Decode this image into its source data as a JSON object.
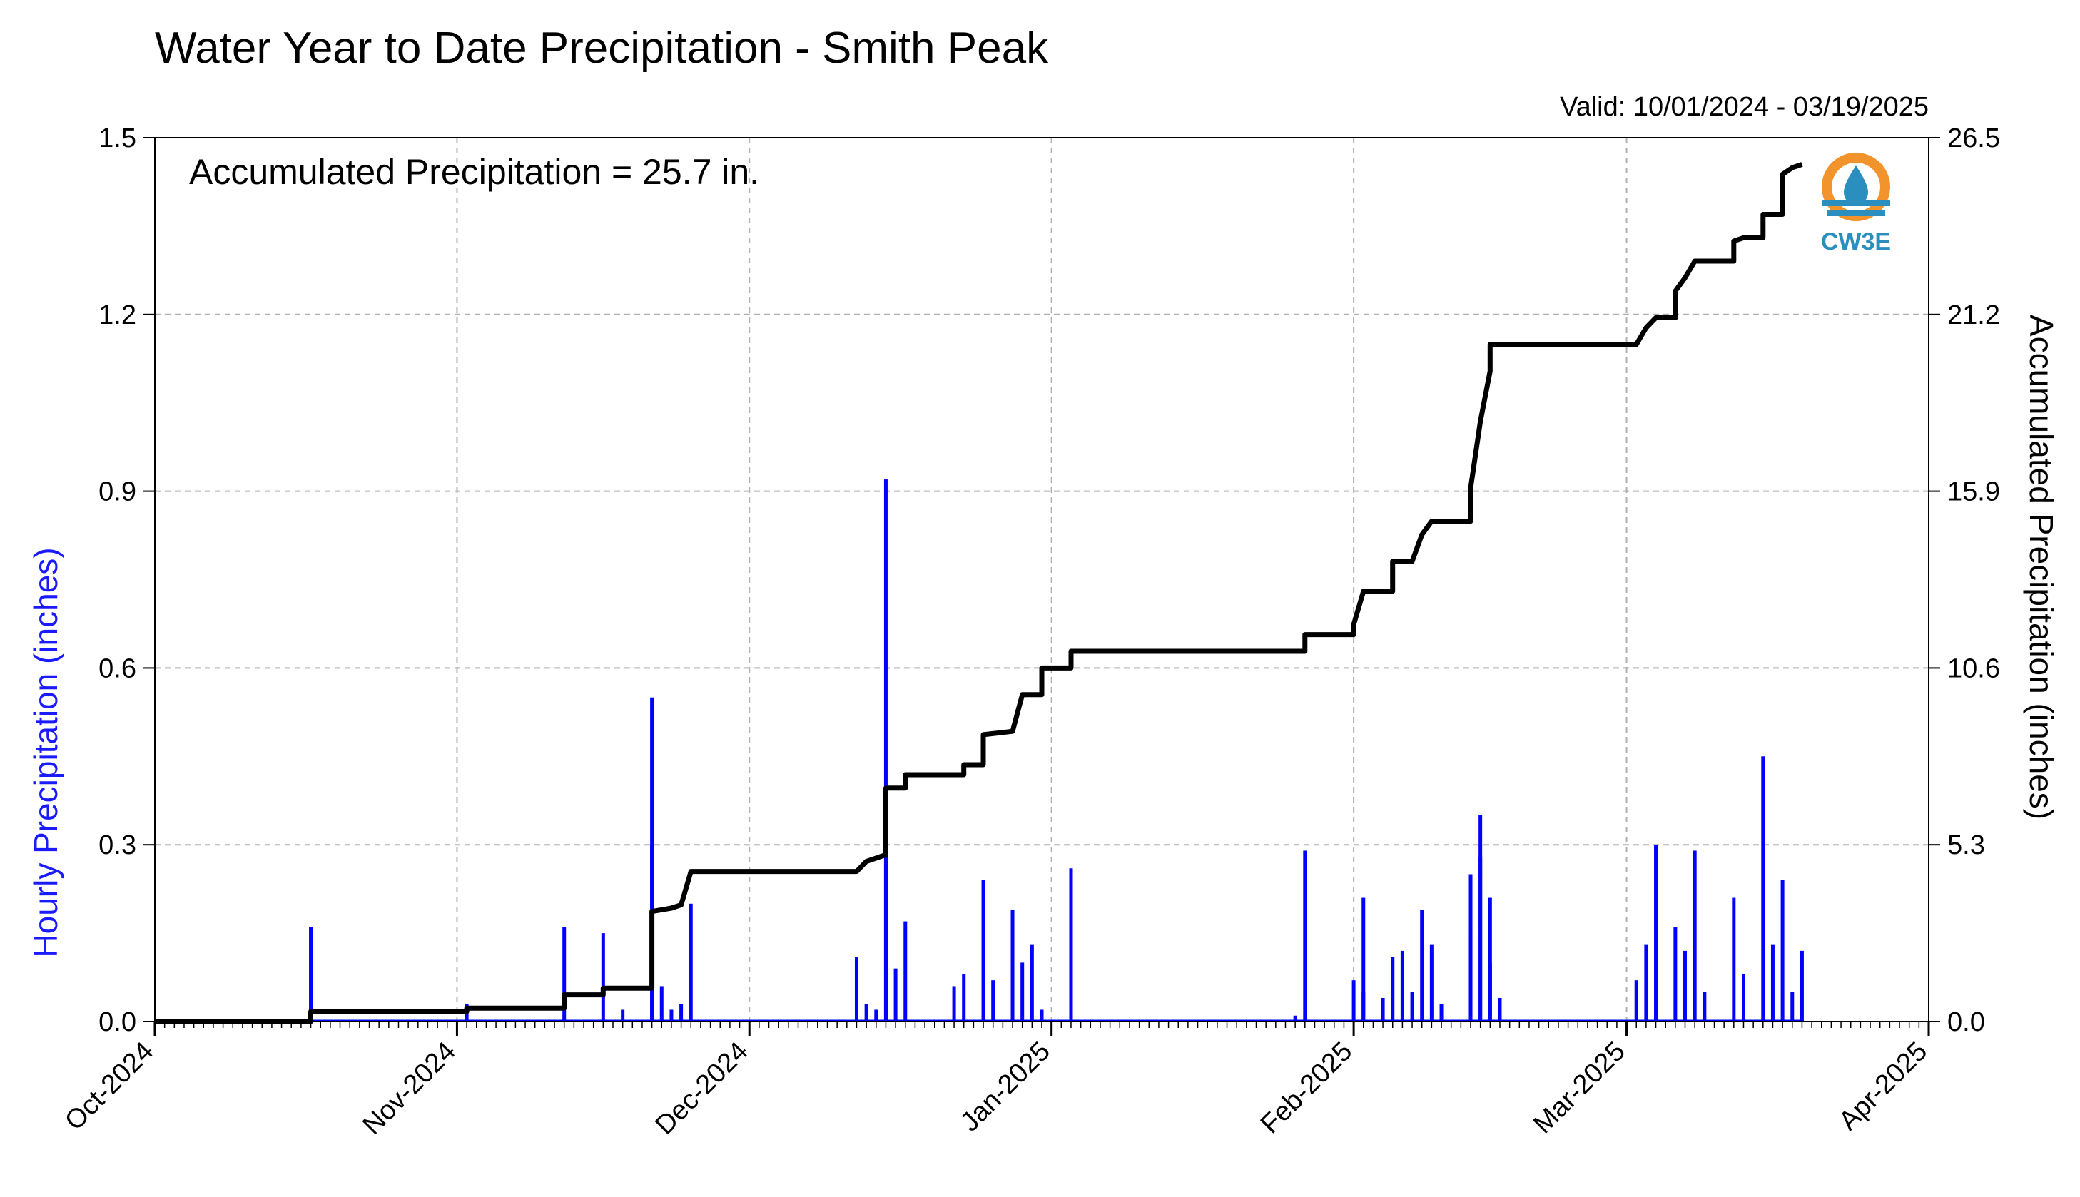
{
  "chart_data": {
    "type": "bar+line",
    "title": "Water Year to Date Precipitation - Smith Peak",
    "valid_text": "Valid: 10/01/2024 - 03/19/2025",
    "annotation": "Accumulated Precipitation = 25.7 in.",
    "logo_text": "CW3E",
    "ylabel_left": "Hourly Precipitation (inches)",
    "ylabel_right": "Accumulated Precipitation (inches)",
    "x_range": [
      "2024-10-01",
      "2025-04-01"
    ],
    "ylim_left": [
      0,
      1.5
    ],
    "ylim_right": [
      0,
      26.5
    ],
    "y_ticks_left": [
      "0.0",
      "0.3",
      "0.6",
      "0.9",
      "1.2",
      "1.5"
    ],
    "y_ticks_right": [
      "0.0",
      "5.3",
      "10.6",
      "15.9",
      "21.2",
      "26.5"
    ],
    "x_ticks": [
      {
        "date": "2024-10-01",
        "label": "Oct-2024"
      },
      {
        "date": "2024-11-01",
        "label": "Nov-2024"
      },
      {
        "date": "2024-12-01",
        "label": "Dec-2024"
      },
      {
        "date": "2025-01-01",
        "label": "Jan-2025"
      },
      {
        "date": "2025-02-01",
        "label": "Feb-2025"
      },
      {
        "date": "2025-03-01",
        "label": "Mar-2025"
      },
      {
        "date": "2025-04-01",
        "label": "Apr-2025"
      }
    ],
    "grid": true,
    "colors": {
      "hourly": "#0000ff",
      "accumulated": "#000000",
      "grid": "#b0b0b0",
      "left_label": "#1a1aff"
    },
    "series": [
      {
        "name": "Hourly Precipitation",
        "axis": "left",
        "style": "bars",
        "points": [
          [
            "2024-10-17",
            0.16
          ],
          [
            "2024-11-02",
            0.03
          ],
          [
            "2024-11-12",
            0.16
          ],
          [
            "2024-11-16",
            0.15
          ],
          [
            "2024-11-18",
            0.02
          ],
          [
            "2024-11-21",
            0.55
          ],
          [
            "2024-11-21",
            0.3
          ],
          [
            "2024-11-22",
            0.06
          ],
          [
            "2024-11-23",
            0.02
          ],
          [
            "2024-11-24",
            0.03
          ],
          [
            "2024-11-25",
            0.2
          ],
          [
            "2024-12-12",
            0.11
          ],
          [
            "2024-12-13",
            0.03
          ],
          [
            "2024-12-14",
            0.02
          ],
          [
            "2024-12-15",
            0.92
          ],
          [
            "2024-12-15",
            0.4
          ],
          [
            "2024-12-16",
            0.09
          ],
          [
            "2024-12-17",
            0.17
          ],
          [
            "2024-12-22",
            0.06
          ],
          [
            "2024-12-23",
            0.08
          ],
          [
            "2024-12-25",
            0.24
          ],
          [
            "2024-12-26",
            0.07
          ],
          [
            "2024-12-28",
            0.19
          ],
          [
            "2024-12-29",
            0.1
          ],
          [
            "2024-12-30",
            0.13
          ],
          [
            "2024-12-31",
            0.02
          ],
          [
            "2025-01-03",
            0.26
          ],
          [
            "2025-01-26",
            0.01
          ],
          [
            "2025-01-27",
            0.29
          ],
          [
            "2025-02-01",
            0.07
          ],
          [
            "2025-02-02",
            0.05
          ],
          [
            "2025-02-02",
            0.21
          ],
          [
            "2025-02-04",
            0.04
          ],
          [
            "2025-02-05",
            0.11
          ],
          [
            "2025-02-06",
            0.12
          ],
          [
            "2025-02-07",
            0.05
          ],
          [
            "2025-02-08",
            0.19
          ],
          [
            "2025-02-09",
            0.13
          ],
          [
            "2025-02-10",
            0.03
          ],
          [
            "2025-02-13",
            0.15
          ],
          [
            "2025-02-13",
            0.25
          ],
          [
            "2025-02-14",
            0.35
          ],
          [
            "2025-02-14",
            0.28
          ],
          [
            "2025-02-15",
            0.21
          ],
          [
            "2025-02-15",
            0.1
          ],
          [
            "2025-02-16",
            0.04
          ],
          [
            "2025-03-02",
            0.07
          ],
          [
            "2025-03-03",
            0.13
          ],
          [
            "2025-03-04",
            0.3
          ],
          [
            "2025-03-06",
            0.16
          ],
          [
            "2025-03-07",
            0.12
          ],
          [
            "2025-03-08",
            0.29
          ],
          [
            "2025-03-09",
            0.05
          ],
          [
            "2025-03-12",
            0.21
          ],
          [
            "2025-03-13",
            0.08
          ],
          [
            "2025-03-15",
            0.45
          ],
          [
            "2025-03-16",
            0.13
          ],
          [
            "2025-03-17",
            0.24
          ],
          [
            "2025-03-18",
            0.05
          ],
          [
            "2025-03-19",
            0.12
          ]
        ]
      },
      {
        "name": "Accumulated Precipitation",
        "axis": "right",
        "style": "step-line",
        "points": [
          [
            "2024-10-01",
            0.0
          ],
          [
            "2024-10-17",
            0.0
          ],
          [
            "2024-10-17",
            0.3
          ],
          [
            "2024-11-02",
            0.3
          ],
          [
            "2024-11-02",
            0.4
          ],
          [
            "2024-11-12",
            0.4
          ],
          [
            "2024-11-12",
            0.8
          ],
          [
            "2024-11-16",
            0.8
          ],
          [
            "2024-11-16",
            1.0
          ],
          [
            "2024-11-21",
            1.0
          ],
          [
            "2024-11-21",
            2.2
          ],
          [
            "2024-11-21",
            3.3
          ],
          [
            "2024-11-23",
            3.4
          ],
          [
            "2024-11-24",
            3.5
          ],
          [
            "2024-11-25",
            4.5
          ],
          [
            "2024-12-12",
            4.5
          ],
          [
            "2024-12-13",
            4.8
          ],
          [
            "2024-12-14",
            4.9
          ],
          [
            "2024-12-15",
            5.0
          ],
          [
            "2024-12-15",
            7.0
          ],
          [
            "2024-12-17",
            7.0
          ],
          [
            "2024-12-17",
            7.4
          ],
          [
            "2024-12-23",
            7.4
          ],
          [
            "2024-12-23",
            7.7
          ],
          [
            "2024-12-25",
            7.7
          ],
          [
            "2024-12-25",
            8.6
          ],
          [
            "2024-12-28",
            8.7
          ],
          [
            "2024-12-29",
            9.8
          ],
          [
            "2024-12-31",
            9.8
          ],
          [
            "2024-12-31",
            10.6
          ],
          [
            "2025-01-03",
            10.6
          ],
          [
            "2025-01-03",
            11.1
          ],
          [
            "2025-01-27",
            11.1
          ],
          [
            "2025-01-27",
            11.6
          ],
          [
            "2025-02-01",
            11.6
          ],
          [
            "2025-02-01",
            11.9
          ],
          [
            "2025-02-02",
            12.9
          ],
          [
            "2025-02-05",
            12.9
          ],
          [
            "2025-02-05",
            13.8
          ],
          [
            "2025-02-07",
            13.8
          ],
          [
            "2025-02-08",
            14.6
          ],
          [
            "2025-02-09",
            15.0
          ],
          [
            "2025-02-13",
            15.0
          ],
          [
            "2025-02-13",
            16.0
          ],
          [
            "2025-02-14",
            18.0
          ],
          [
            "2025-02-15",
            19.5
          ],
          [
            "2025-02-15",
            20.3
          ],
          [
            "2025-03-02",
            20.3
          ],
          [
            "2025-03-03",
            20.8
          ],
          [
            "2025-03-04",
            21.1
          ],
          [
            "2025-03-06",
            21.1
          ],
          [
            "2025-03-06",
            21.9
          ],
          [
            "2025-03-07",
            22.3
          ],
          [
            "2025-03-08",
            22.8
          ],
          [
            "2025-03-12",
            22.8
          ],
          [
            "2025-03-12",
            23.4
          ],
          [
            "2025-03-13",
            23.5
          ],
          [
            "2025-03-15",
            23.5
          ],
          [
            "2025-03-15",
            24.2
          ],
          [
            "2025-03-17",
            24.2
          ],
          [
            "2025-03-17",
            25.4
          ],
          [
            "2025-03-18",
            25.6
          ],
          [
            "2025-03-19",
            25.7
          ]
        ]
      }
    ]
  }
}
